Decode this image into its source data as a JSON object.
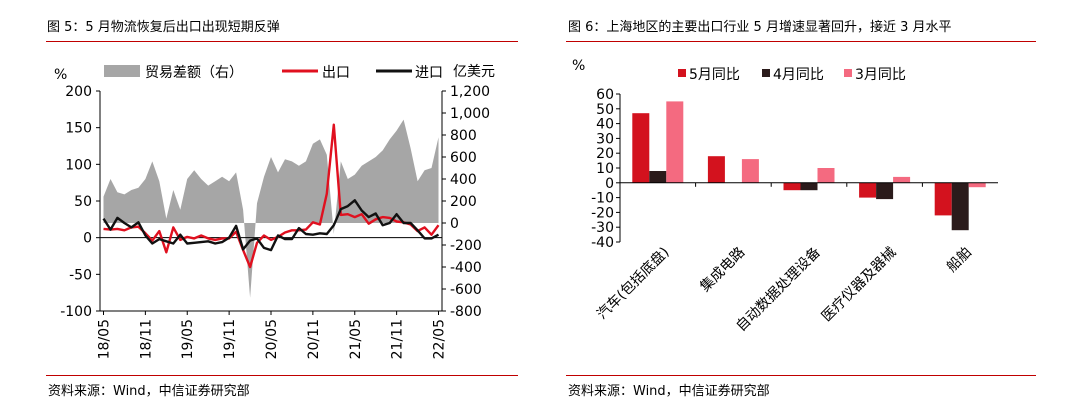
{
  "charts": [
    {
      "title": "图 5：5 月物流恢复后出口出现短期反弹",
      "source": "资料来源：Wind，中信证券研究部",
      "chart_data": {
        "type": "line",
        "left_unit": "%",
        "right_unit": "亿美元",
        "ylim_left": [
          -100,
          200
        ],
        "yticks_left": [
          "-100",
          "-50",
          "0",
          "50",
          "100",
          "150",
          "200"
        ],
        "ylim_right": [
          -800,
          1200
        ],
        "yticks_right": [
          "-800",
          "-600",
          "-400",
          "-200",
          "0",
          "200",
          "400",
          "600",
          "800",
          "1,000",
          "1,200"
        ],
        "xtick_labels": [
          "18/05",
          "18/11",
          "19/05",
          "19/11",
          "20/05",
          "20/11",
          "21/05",
          "21/11",
          "22/05"
        ],
        "x": [
          "2018-05",
          "2018-06",
          "2018-07",
          "2018-08",
          "2018-09",
          "2018-10",
          "2018-11",
          "2018-12",
          "2019-01",
          "2019-02",
          "2019-03",
          "2019-04",
          "2019-05",
          "2019-06",
          "2019-07",
          "2019-08",
          "2019-09",
          "2019-10",
          "2019-11",
          "2019-12",
          "2020-01",
          "2020-02",
          "2020-03",
          "2020-04",
          "2020-05",
          "2020-06",
          "2020-07",
          "2020-08",
          "2020-09",
          "2020-10",
          "2020-11",
          "2020-12",
          "2021-01",
          "2021-02",
          "2021-03",
          "2021-04",
          "2021-05",
          "2021-06",
          "2021-07",
          "2021-08",
          "2021-09",
          "2021-10",
          "2021-11",
          "2021-12",
          "2022-01",
          "2022-02",
          "2022-03",
          "2022-04",
          "2022-05"
        ],
        "series": [
          {
            "name": "贸易差额（右）",
            "axis": "right",
            "kind": "area",
            "color": "#a6a6a6",
            "values": [
              240,
              400,
              280,
              260,
              300,
              320,
              400,
              560,
              380,
              40,
              300,
              120,
              400,
              480,
              400,
              340,
              380,
              420,
              380,
              460,
              120,
              -680,
              180,
              420,
              600,
              460,
              580,
              560,
              520,
              560,
              720,
              760,
              620,
              -100,
              560,
              400,
              440,
              520,
              560,
              600,
              660,
              760,
              840,
              940,
              680,
              380,
              480,
              500,
              780
            ]
          },
          {
            "name": "出口",
            "axis": "left",
            "kind": "line",
            "color": "#e0101f",
            "values": [
              12,
              11,
              12,
              10,
              14,
              15,
              6,
              -4,
              9,
              -20,
              14,
              -3,
              1,
              -1,
              3,
              -1,
              -3,
              -1,
              -1,
              8,
              -17,
              -40,
              -7,
              3,
              -3,
              1,
              7,
              10,
              10,
              11,
              21,
              18,
              60,
              154,
              31,
              32,
              28,
              32,
              19,
              25,
              28,
              27,
              22,
              21,
              18,
              9,
              14,
              4,
              17
            ]
          },
          {
            "name": "进口",
            "axis": "left",
            "kind": "line",
            "color": "#111111",
            "values": [
              26,
              11,
              27,
              20,
              14,
              21,
              3,
              -8,
              -2,
              -5,
              -8,
              4,
              -8,
              -7,
              -6,
              -5,
              -8,
              -6,
              0,
              16,
              -16,
              -4,
              -1,
              -14,
              -17,
              3,
              -2,
              -2,
              13,
              5,
              4,
              6,
              5,
              17,
              39,
              43,
              51,
              37,
              28,
              33,
              17,
              20,
              32,
              20,
              20,
              10,
              -1,
              -1,
              4
            ]
          }
        ]
      }
    },
    {
      "title": "图 6：上海地区的主要出口行业 5 月增速显著回升，接近 3 月水平",
      "source": "资料来源：Wind，中信证券研究部",
      "chart_data": {
        "type": "bar",
        "unit": "%",
        "ylim": [
          -40,
          60
        ],
        "yticks": [
          "-40",
          "-30",
          "-20",
          "-10",
          "0",
          "10",
          "20",
          "30",
          "40",
          "50",
          "60"
        ],
        "categories": [
          "汽车(包括底盘)",
          "集成电路",
          "自动数据处理设备",
          "医疗仪器及器械",
          "船舶"
        ],
        "series": [
          {
            "name": "5月同比",
            "color": "#d3121e",
            "values": [
              47,
              18,
              -5,
              -10,
              -22
            ]
          },
          {
            "name": "4月同比",
            "color": "#2b1b1b",
            "values": [
              8,
              0,
              -5,
              -11,
              -32
            ]
          },
          {
            "name": "3月同比",
            "color": "#f46a80",
            "values": [
              55,
              16,
              10,
              4,
              -3
            ]
          }
        ]
      }
    }
  ]
}
